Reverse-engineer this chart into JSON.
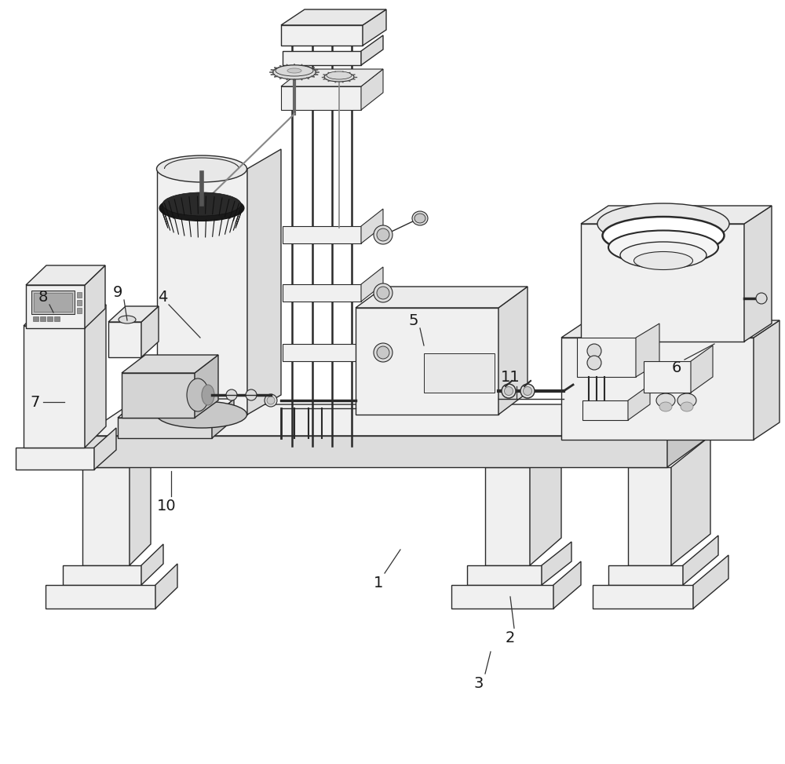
{
  "background_color": "#ffffff",
  "line_color": "#2a2a2a",
  "face_light": "#f0f0f0",
  "face_mid": "#dcdcdc",
  "face_dark": "#c8c8c8",
  "face_darker": "#b8b8b8",
  "figsize": [
    10.0,
    9.73
  ],
  "dpi": 100,
  "xlim": [
    0,
    1000
  ],
  "ylim": [
    0,
    973
  ]
}
